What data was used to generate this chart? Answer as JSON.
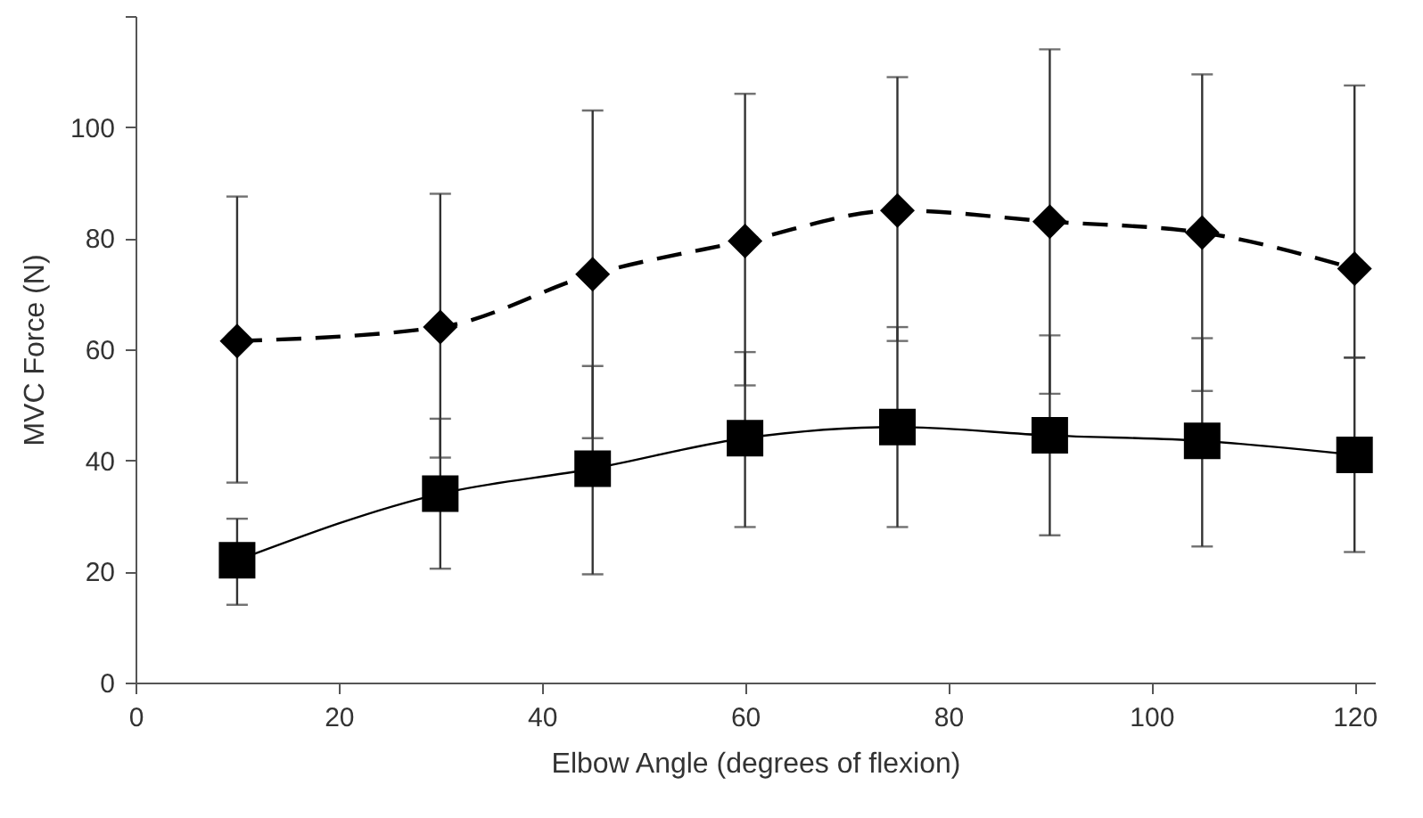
{
  "chart_data": {
    "type": "line",
    "xlabel": "Elbow Angle (degrees of flexion)",
    "ylabel": "MVC  Force  (N)",
    "x": [
      10,
      30,
      45,
      60,
      75,
      90,
      105,
      120
    ],
    "xlim": [
      0,
      122
    ],
    "xticks": [
      0,
      20,
      40,
      60,
      80,
      100,
      120
    ],
    "ylim": [
      0,
      120
    ],
    "yticks": [
      0,
      20,
      40,
      60,
      80,
      100,
      {
        "value": 120,
        "label": null
      }
    ],
    "series": [
      {
        "color": "#000000",
        "marker": "diamond",
        "line_style": "dashed",
        "values": [
          61.5,
          64,
          73.5,
          79.5,
          85,
          83,
          81,
          74.5
        ],
        "errors": [
          [
            36,
            87.5
          ],
          [
            40.5,
            88
          ],
          [
            44,
            103
          ],
          [
            53.5,
            106
          ],
          [
            61.5,
            109
          ],
          [
            52,
            114
          ],
          [
            52.5,
            109.5
          ],
          [
            58.5,
            107.5
          ]
        ]
      },
      {
        "color": "#000000",
        "marker": "square",
        "line_style": "solid",
        "values": [
          22,
          34,
          38.5,
          44,
          46,
          44.5,
          43.5,
          41
        ],
        "errors": [
          [
            14,
            29.5
          ],
          [
            20.5,
            47.5
          ],
          [
            19.5,
            57
          ],
          [
            28,
            59.5
          ],
          [
            28,
            64
          ],
          [
            26.5,
            62.5
          ],
          [
            24.5,
            62
          ],
          [
            23.5,
            58.5
          ]
        ]
      }
    ]
  }
}
